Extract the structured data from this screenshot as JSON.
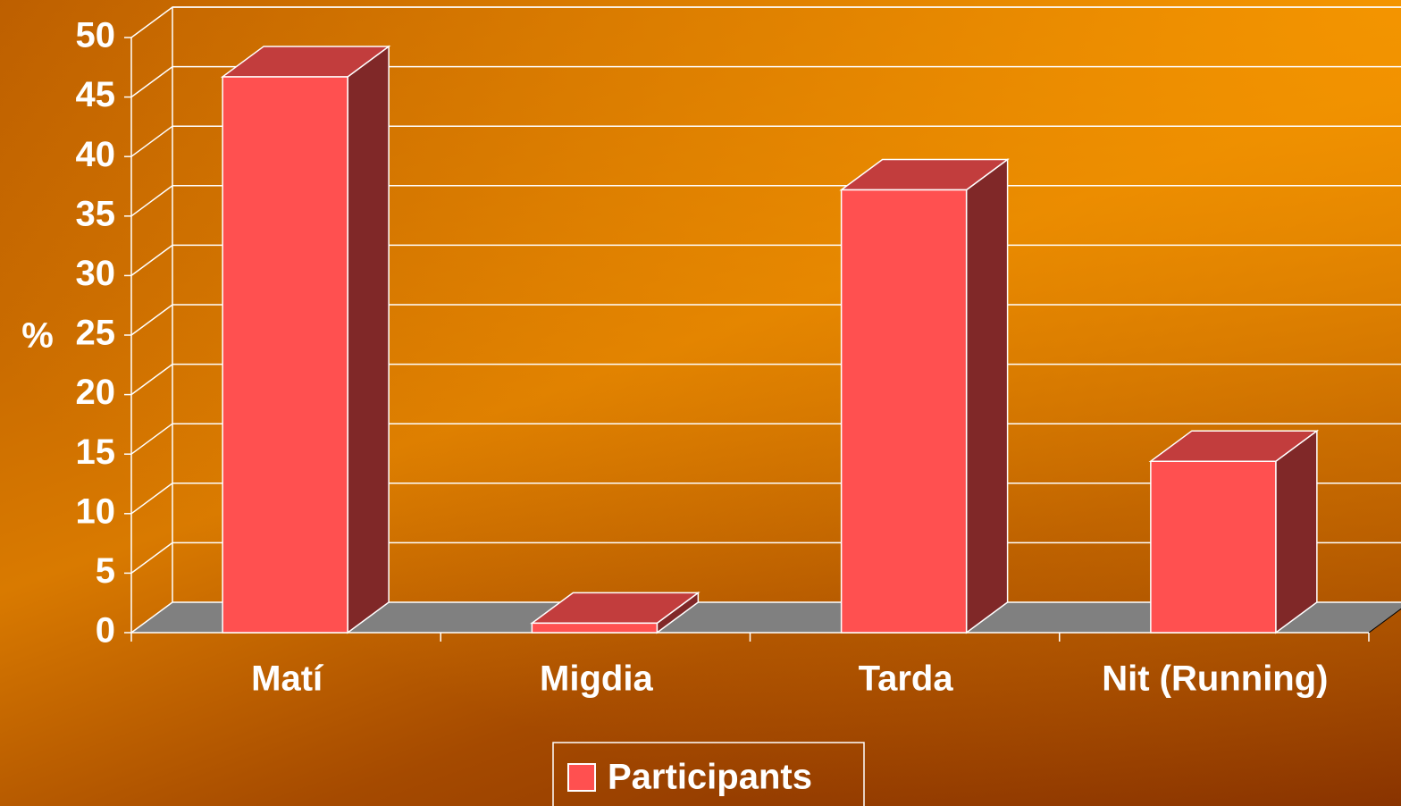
{
  "chart_data": {
    "type": "bar3d",
    "y_label": "%",
    "categories": [
      "Matí",
      "Migdia",
      "Tarda",
      "Nit (Running)"
    ],
    "series": [
      {
        "name": "Participants",
        "color": "#ff5050",
        "values": [
          46.7,
          0.8,
          37.2,
          14.4
        ]
      }
    ],
    "ylim": [
      0,
      50
    ],
    "yticks": [
      0,
      5,
      10,
      15,
      20,
      25,
      30,
      35,
      40,
      45,
      50
    ],
    "grid": true,
    "legend": "bottom"
  }
}
